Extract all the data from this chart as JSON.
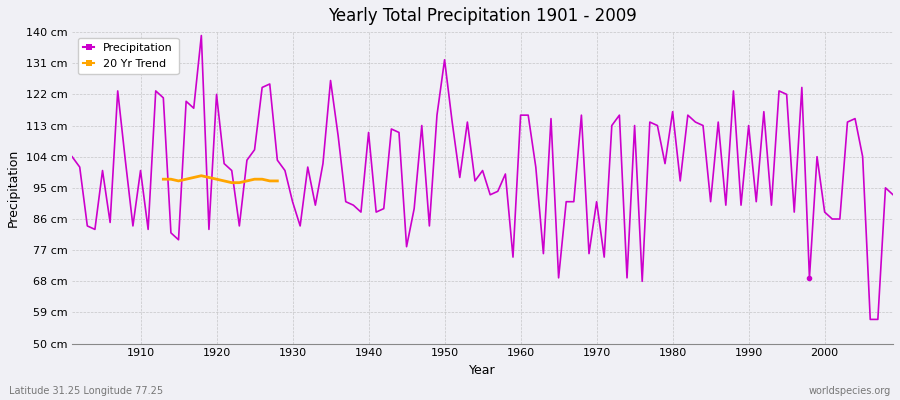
{
  "title": "Yearly Total Precipitation 1901 - 2009",
  "xlabel": "Year",
  "ylabel": "Precipitation",
  "lat_lon_label": "Latitude 31.25 Longitude 77.25",
  "watermark": "worldspecies.org",
  "line_color": "#CC00CC",
  "trend_color": "#FFA500",
  "bg_color": "#F0F0F5",
  "plot_bg": "#F0F0F5",
  "ylim": [
    50,
    140
  ],
  "yticks": [
    50,
    59,
    68,
    77,
    86,
    95,
    104,
    113,
    122,
    131,
    140
  ],
  "ytick_labels": [
    "50 cm",
    "59 cm",
    "68 cm",
    "77 cm",
    "86 cm",
    "95 cm",
    "104 cm",
    "113 cm",
    "122 cm",
    "131 cm",
    "140 cm"
  ],
  "years": [
    1901,
    1902,
    1903,
    1904,
    1905,
    1906,
    1907,
    1908,
    1909,
    1910,
    1911,
    1912,
    1913,
    1914,
    1915,
    1916,
    1917,
    1918,
    1919,
    1920,
    1921,
    1922,
    1923,
    1924,
    1925,
    1926,
    1927,
    1928,
    1929,
    1930,
    1931,
    1932,
    1933,
    1934,
    1935,
    1936,
    1937,
    1938,
    1939,
    1940,
    1941,
    1942,
    1943,
    1944,
    1945,
    1946,
    1947,
    1948,
    1949,
    1950,
    1951,
    1952,
    1953,
    1954,
    1955,
    1956,
    1957,
    1958,
    1959,
    1960,
    1961,
    1962,
    1963,
    1964,
    1965,
    1966,
    1967,
    1968,
    1969,
    1970,
    1971,
    1972,
    1973,
    1974,
    1975,
    1976,
    1977,
    1978,
    1979,
    1980,
    1981,
    1982,
    1983,
    1984,
    1985,
    1986,
    1987,
    1988,
    1989,
    1990,
    1991,
    1992,
    1993,
    1994,
    1995,
    1996,
    1997,
    1998,
    1999,
    2000,
    2001,
    2002,
    2003,
    2004,
    2005,
    2006,
    2007,
    2008,
    2009
  ],
  "precip": [
    104,
    101,
    84,
    83,
    100,
    85,
    123,
    103,
    84,
    100,
    83,
    123,
    121,
    82,
    80,
    120,
    118,
    139,
    83,
    122,
    102,
    100,
    84,
    103,
    106,
    124,
    125,
    103,
    100,
    91,
    84,
    101,
    90,
    102,
    126,
    110,
    91,
    90,
    88,
    111,
    88,
    89,
    112,
    111,
    78,
    89,
    113,
    84,
    116,
    132,
    114,
    98,
    114,
    97,
    100,
    93,
    94,
    99,
    75,
    116,
    116,
    101,
    76,
    115,
    69,
    91,
    91,
    116,
    76,
    91,
    75,
    113,
    116,
    69,
    113,
    68,
    114,
    113,
    102,
    117,
    97,
    116,
    114,
    113,
    91,
    114,
    90,
    123,
    90,
    113,
    91,
    117,
    90,
    123,
    122,
    88,
    124,
    69,
    104,
    88,
    86,
    86,
    114,
    115,
    104,
    57,
    57,
    95,
    93
  ],
  "trend_years": [
    1913,
    1914,
    1915,
    1916,
    1917,
    1918,
    1919,
    1920,
    1921,
    1922,
    1923,
    1924,
    1925,
    1926,
    1927,
    1928
  ],
  "trend_values": [
    97.5,
    97.5,
    97.0,
    97.5,
    98.0,
    98.5,
    98.0,
    97.5,
    97.0,
    96.5,
    96.5,
    97.0,
    97.5,
    97.5,
    97.0,
    97.0
  ],
  "isolated_point_year": 1998,
  "isolated_point_value": 69,
  "xticks": [
    1910,
    1920,
    1930,
    1940,
    1950,
    1960,
    1970,
    1980,
    1990,
    2000
  ]
}
